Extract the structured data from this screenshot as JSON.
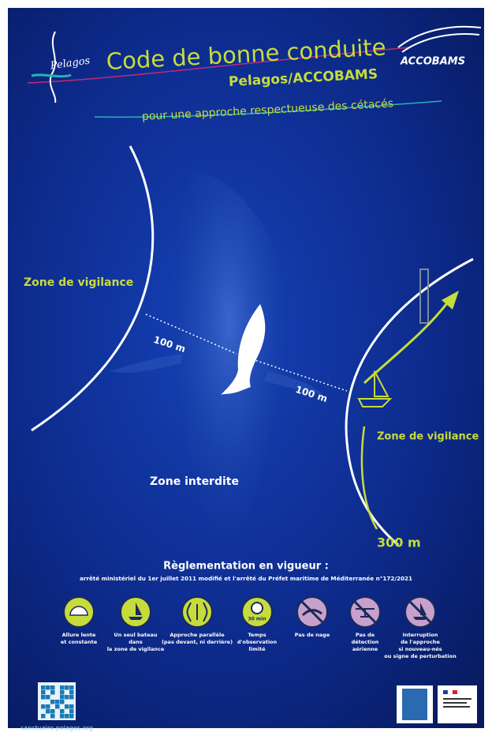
{
  "header": {
    "logo_left": "Pelagos",
    "title": "Code de bonne conduite",
    "subtitle": "Pelagos/ACCOBAMS",
    "logo_right": "ACCOBAMS",
    "tagline": "pour une approche respectueuse des cétacés"
  },
  "diagram": {
    "zone_left": "Zone de vigilance",
    "distance_left": "100 m",
    "distance_right": "100 m",
    "zone_center": "Zone interdite",
    "zone_right": "Zone de vigilance",
    "distance_far": "300 m"
  },
  "regulation": {
    "title": "Règlementation en vigueur :",
    "text": "arrêté ministériel du 1er juillet 2011 modifié et l'arrêté du Préfet maritime de Méditerranée n°172/2021"
  },
  "icons": [
    {
      "caption": [
        "Allure lente",
        "et constante"
      ]
    },
    {
      "caption": [
        "Un seul bateau",
        "dans",
        "la zone de vigilance"
      ]
    },
    {
      "caption": [
        "Approche parallèle",
        "(pas devant, ni derrière)"
      ]
    },
    {
      "badge": "30 min",
      "caption": [
        "Temps",
        "d'observation",
        "limité"
      ]
    },
    {
      "caption": [
        "Pas de nage"
      ]
    },
    {
      "caption": [
        "Pas de",
        "détection",
        "aérienne"
      ]
    },
    {
      "caption": [
        "Interruption",
        "de l'approche",
        "si nouveau-nés",
        "ou signe de perturbation"
      ]
    }
  ],
  "footer": {
    "url": "sanctuaire-pelagos.org"
  }
}
